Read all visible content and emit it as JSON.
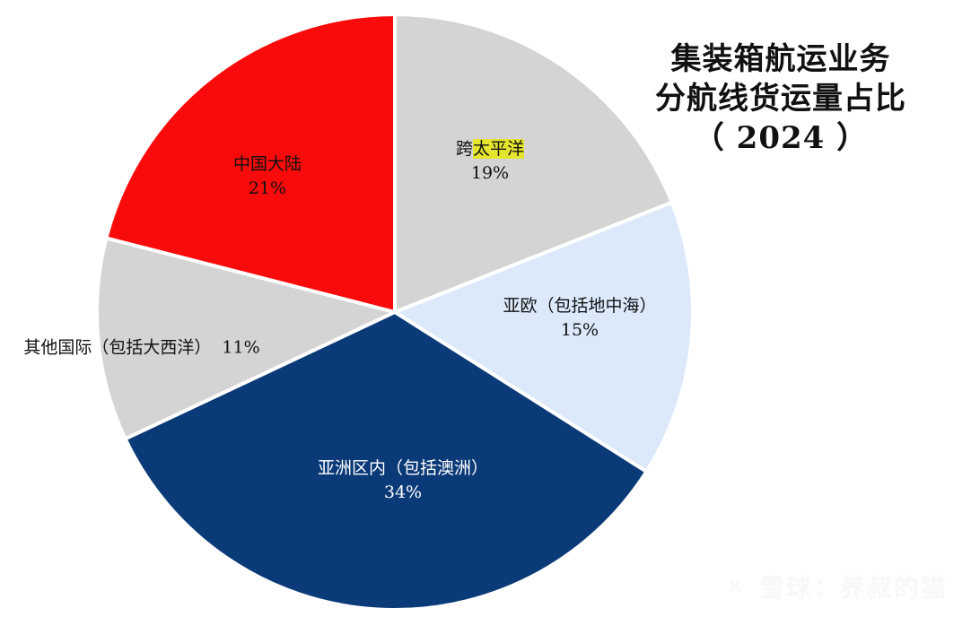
{
  "title": {
    "line1": "集装箱航运业务",
    "line2": "分航线货运量占比",
    "line3": "（ 2024 ）"
  },
  "watermark": {
    "text": "雪球：养叔的猫",
    "icon": "xueqiu-logo-icon"
  },
  "chart_data": {
    "type": "pie",
    "title": "集装箱航运业务 分航线货运量占比（ 2024 ）",
    "series": [
      {
        "name": "跨太平洋",
        "value": 19,
        "label": "19%",
        "color": "#d4d4d4",
        "text_color": "#111111"
      },
      {
        "name": "亚欧（包括地中海）",
        "value": 15,
        "label": "15%",
        "color": "#dbe9fb",
        "text_color": "#111111"
      },
      {
        "name": "亚洲区内（包括澳洲）",
        "value": 34,
        "label": "34%",
        "color": "#0b3a78",
        "text_color": "#ffffff"
      },
      {
        "name": "其他国际（包括大西洋）",
        "value": 11,
        "label": "11%",
        "color": "#d4d4d4",
        "text_color": "#111111"
      },
      {
        "name": "中国大陆",
        "value": 21,
        "label": "21%",
        "color": "#f90b0b",
        "text_color": "#111111"
      }
    ],
    "legend": "none",
    "highlight": {
      "slice": "跨太平洋",
      "text": "太平洋",
      "color": "#e5e52e"
    }
  }
}
